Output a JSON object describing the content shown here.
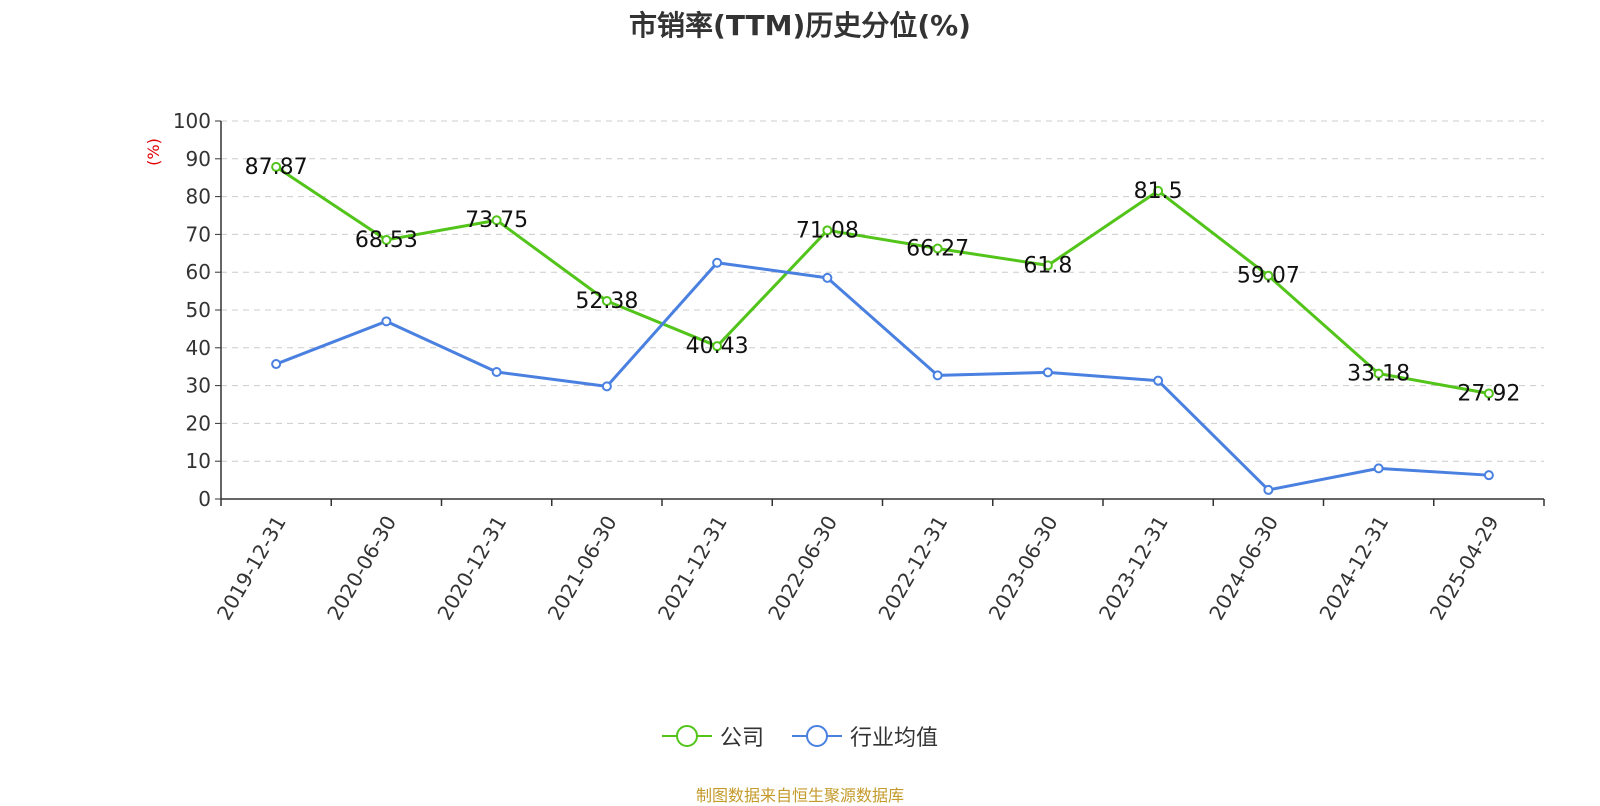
{
  "chart_data": {
    "type": "line",
    "title": "市销率(TTM)历史分位(%)",
    "ylabel": "(%)",
    "xlabel": "",
    "ylim": [
      0,
      100
    ],
    "yticks": [
      0,
      10,
      20,
      30,
      40,
      50,
      60,
      70,
      80,
      90,
      100
    ],
    "grid": true,
    "legend_position": "bottom-center",
    "categories": [
      "2019-12-31",
      "2020-06-30",
      "2020-12-31",
      "2021-06-30",
      "2021-12-31",
      "2022-06-30",
      "2022-12-31",
      "2023-06-30",
      "2023-12-31",
      "2024-06-30",
      "2024-12-31",
      "2025-04-29"
    ],
    "series": [
      {
        "name": "公司",
        "color": "#52c41a",
        "values": [
          87.87,
          68.53,
          73.75,
          52.38,
          40.43,
          71.08,
          66.27,
          61.8,
          81.5,
          59.07,
          33.18,
          27.92
        ],
        "data_labels": [
          "87.87",
          "68.53",
          "73.75",
          "52.38",
          "40.43",
          "71.08",
          "66.27",
          "61.8",
          "81.5",
          "59.07",
          "33.18",
          "27.92"
        ]
      },
      {
        "name": "行业均值",
        "color": "#4a80e0",
        "values": [
          35.7,
          47.0,
          33.6,
          29.8,
          62.5,
          58.5,
          32.7,
          33.5,
          31.3,
          2.4,
          8.1,
          6.3
        ]
      }
    ],
    "source_note": "制图数据来自恒生聚源数据库"
  }
}
